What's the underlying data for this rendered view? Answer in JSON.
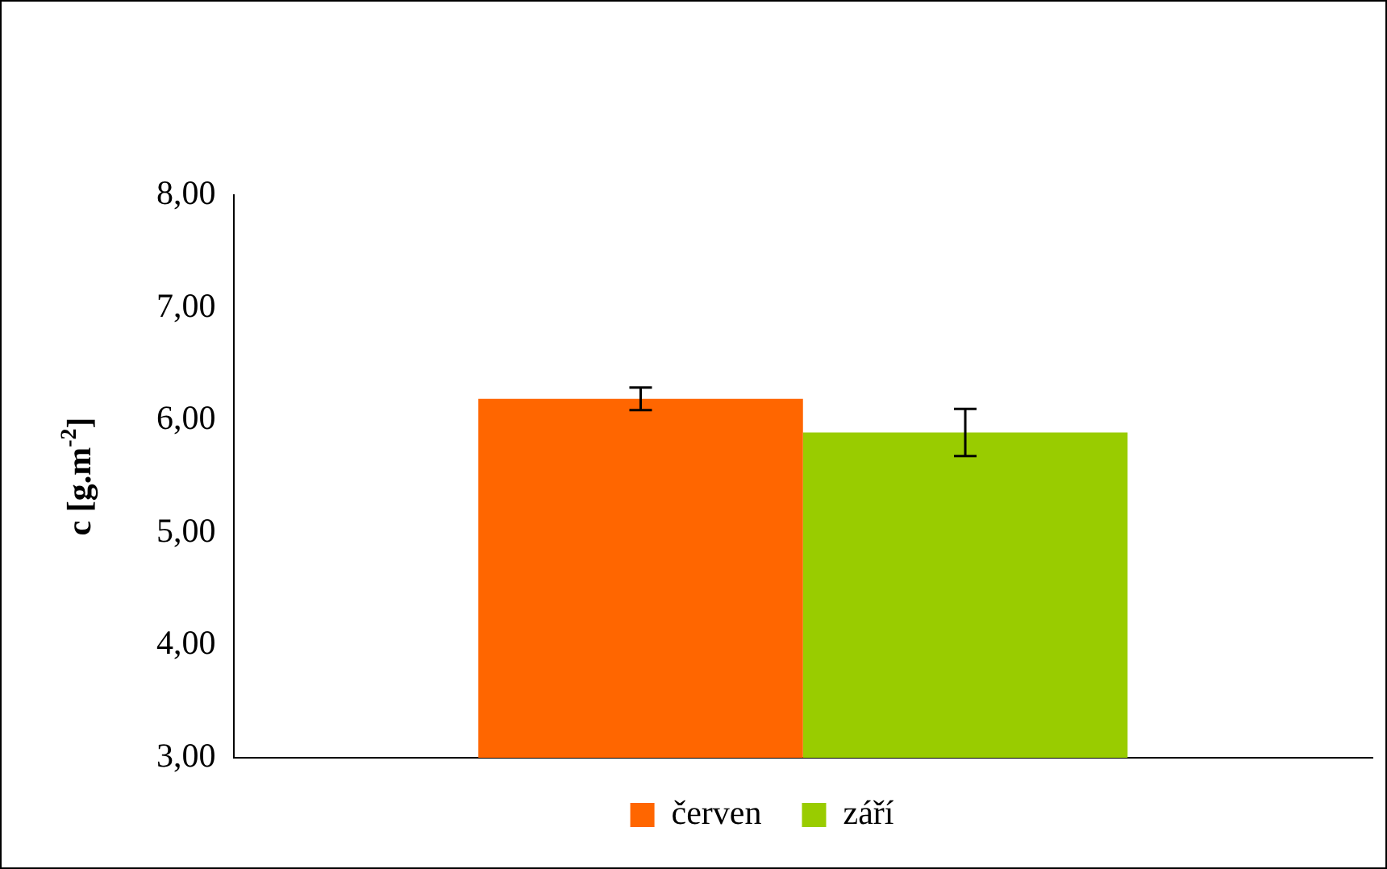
{
  "chart_data": {
    "type": "bar",
    "ylabel": "c [g.m$^{-2}$]",
    "categories": [
      null
    ],
    "series": [
      {
        "name": "červen",
        "color": "#ff6600",
        "values": [
          6.19
        ],
        "errors": [
          0.1
        ]
      },
      {
        "name": "září",
        "color": "#99cc00",
        "values": [
          5.89
        ],
        "errors": [
          0.21
        ]
      }
    ],
    "ylim": [
      3,
      8
    ],
    "yticks": [
      {
        "value": 3,
        "label": "3,00"
      },
      {
        "value": 4,
        "label": "4,00"
      },
      {
        "value": 5,
        "label": "5,00"
      },
      {
        "value": 6,
        "label": "6,00"
      },
      {
        "value": 7,
        "label": "7,00"
      },
      {
        "value": 8,
        "label": "8,00"
      }
    ],
    "grid": false,
    "legend": "bottom"
  }
}
